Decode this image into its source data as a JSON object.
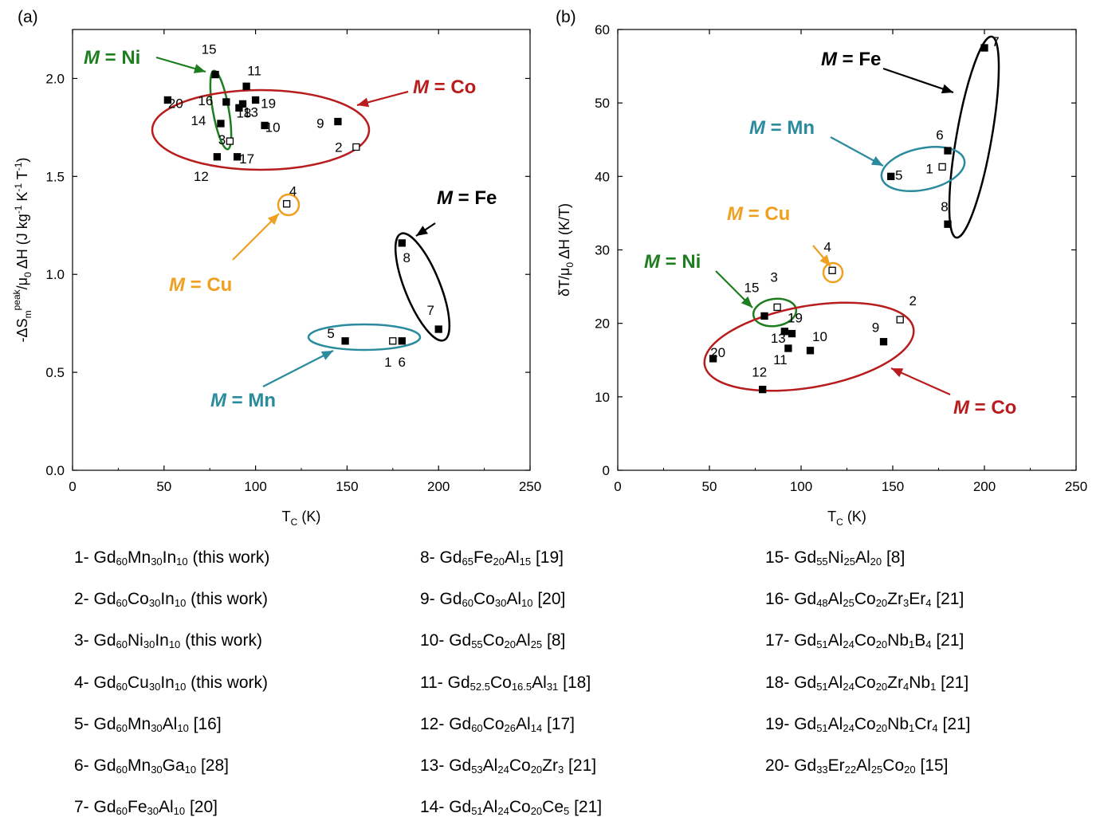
{
  "chart_data": [
    {
      "type": "scatter",
      "panel_label": "(a)",
      "xlabel": "T_C (K)",
      "ylabel": "-ΔS_m^peak/μ0 ΔH (J kg^-1 K^-1 T^-1)",
      "xlim": [
        0,
        250
      ],
      "ylim": [
        0,
        2.25
      ],
      "xticks": [
        0,
        50,
        100,
        150,
        200,
        250
      ],
      "yticks": [
        0.0,
        0.5,
        1.0,
        1.5,
        2.0
      ],
      "points": [
        {
          "id": "1",
          "x": 175,
          "y": 0.66,
          "open": true
        },
        {
          "id": "2",
          "x": 155,
          "y": 1.65,
          "open": true
        },
        {
          "id": "3",
          "x": 86,
          "y": 1.68,
          "open": true
        },
        {
          "id": "4",
          "x": 117,
          "y": 1.36,
          "open": true
        },
        {
          "id": "5",
          "x": 149,
          "y": 0.66,
          "open": false
        },
        {
          "id": "6",
          "x": 180,
          "y": 0.66,
          "open": false
        },
        {
          "id": "7",
          "x": 200,
          "y": 0.72,
          "open": false
        },
        {
          "id": "8",
          "x": 180,
          "y": 1.16,
          "open": false
        },
        {
          "id": "9",
          "x": 145,
          "y": 1.78,
          "open": false
        },
        {
          "id": "10",
          "x": 105,
          "y": 1.76,
          "open": false
        },
        {
          "id": "11",
          "x": 95,
          "y": 1.96,
          "open": false
        },
        {
          "id": "12",
          "x": 79,
          "y": 1.6,
          "open": false
        },
        {
          "id": "13",
          "x": 93,
          "y": 1.87,
          "open": false
        },
        {
          "id": "14",
          "x": 81,
          "y": 1.77,
          "open": false
        },
        {
          "id": "15",
          "x": 78,
          "y": 2.02,
          "open": false
        },
        {
          "id": "16",
          "x": 84,
          "y": 1.88,
          "open": false
        },
        {
          "id": "17",
          "x": 90,
          "y": 1.6,
          "open": false
        },
        {
          "id": "18",
          "x": 91,
          "y": 1.85,
          "open": false
        },
        {
          "id": "19",
          "x": 100,
          "y": 1.89,
          "open": false
        },
        {
          "id": "20",
          "x": 52,
          "y": 1.89,
          "open": false
        }
      ],
      "groups": [
        {
          "label": "M = Ni",
          "color": "#1e7d1e"
        },
        {
          "label": "M = Co",
          "color": "#b81c1c"
        },
        {
          "label": "M = Cu",
          "color": "#f0a020"
        },
        {
          "label": "M = Fe",
          "color": "#000000"
        },
        {
          "label": "M = Mn",
          "color": "#2a8a9e"
        }
      ]
    },
    {
      "type": "scatter",
      "panel_label": "(b)",
      "xlabel": "T_C (K)",
      "ylabel": "δT/μ0 ΔH (K/T)",
      "xlim": [
        0,
        250
      ],
      "ylim": [
        0,
        60
      ],
      "xticks": [
        0,
        50,
        100,
        150,
        200,
        250
      ],
      "yticks": [
        0,
        10,
        20,
        30,
        40,
        50,
        60
      ],
      "points": [
        {
          "id": "1",
          "x": 177,
          "y": 41.3,
          "open": true
        },
        {
          "id": "2",
          "x": 154,
          "y": 20.5,
          "open": true
        },
        {
          "id": "3",
          "x": 87,
          "y": 22.2,
          "open": true
        },
        {
          "id": "4",
          "x": 117,
          "y": 27.2,
          "open": true
        },
        {
          "id": "5",
          "x": 149,
          "y": 40.0,
          "open": false
        },
        {
          "id": "6",
          "x": 180,
          "y": 43.5,
          "open": false
        },
        {
          "id": "7",
          "x": 200,
          "y": 57.5,
          "open": false
        },
        {
          "id": "8",
          "x": 180,
          "y": 33.5,
          "open": false
        },
        {
          "id": "9",
          "x": 145,
          "y": 17.5,
          "open": false
        },
        {
          "id": "10",
          "x": 105,
          "y": 16.3,
          "open": false
        },
        {
          "id": "11",
          "x": 93,
          "y": 16.6,
          "open": false
        },
        {
          "id": "12",
          "x": 79,
          "y": 11.0,
          "open": false
        },
        {
          "id": "13",
          "x": 91,
          "y": 18.9,
          "open": false
        },
        {
          "id": "15",
          "x": 80,
          "y": 21.0,
          "open": false
        },
        {
          "id": "19",
          "x": 95,
          "y": 18.6,
          "open": false
        },
        {
          "id": "20",
          "x": 52,
          "y": 15.2,
          "open": false
        }
      ],
      "groups": [
        {
          "label": "M = Fe",
          "color": "#000000"
        },
        {
          "label": "M = Mn",
          "color": "#2a8a9e"
        },
        {
          "label": "M = Cu",
          "color": "#f0a020"
        },
        {
          "label": "M = Ni",
          "color": "#1e7d1e"
        },
        {
          "label": "M = Co",
          "color": "#b81c1c"
        }
      ]
    }
  ],
  "legend": [
    {
      "n": "1-",
      "parts": [
        [
          "Gd",
          ""
        ],
        [
          "60",
          "s"
        ],
        [
          "Mn",
          ""
        ],
        [
          "30",
          "s"
        ],
        [
          "In",
          ""
        ],
        [
          "10",
          "s"
        ],
        [
          " (this work)",
          ""
        ]
      ]
    },
    {
      "n": "2-",
      "parts": [
        [
          "Gd",
          ""
        ],
        [
          "60",
          "s"
        ],
        [
          "Co",
          ""
        ],
        [
          "30",
          "s"
        ],
        [
          "In",
          ""
        ],
        [
          "10",
          "s"
        ],
        [
          " (this work)",
          ""
        ]
      ]
    },
    {
      "n": "3-",
      "parts": [
        [
          "Gd",
          ""
        ],
        [
          "60",
          "s"
        ],
        [
          "Ni",
          ""
        ],
        [
          "30",
          "s"
        ],
        [
          "In",
          ""
        ],
        [
          "10",
          "s"
        ],
        [
          " (this work)",
          ""
        ]
      ]
    },
    {
      "n": "4-",
      "parts": [
        [
          "Gd",
          ""
        ],
        [
          "60",
          "s"
        ],
        [
          "Cu",
          ""
        ],
        [
          "30",
          "s"
        ],
        [
          "In",
          ""
        ],
        [
          "10",
          "s"
        ],
        [
          " (this work)",
          ""
        ]
      ]
    },
    {
      "n": "5-",
      "parts": [
        [
          "Gd",
          ""
        ],
        [
          "60",
          "s"
        ],
        [
          "Mn",
          ""
        ],
        [
          "30",
          "s"
        ],
        [
          "Al",
          ""
        ],
        [
          "10",
          "s"
        ],
        [
          " [16]",
          ""
        ]
      ]
    },
    {
      "n": "6-",
      "parts": [
        [
          "Gd",
          ""
        ],
        [
          "60",
          "s"
        ],
        [
          "Mn",
          ""
        ],
        [
          "30",
          "s"
        ],
        [
          "Ga",
          ""
        ],
        [
          "10",
          "s"
        ],
        [
          " [28]",
          ""
        ]
      ]
    },
    {
      "n": "7-",
      "parts": [
        [
          "Gd",
          ""
        ],
        [
          "60",
          "s"
        ],
        [
          "Fe",
          ""
        ],
        [
          "30",
          "s"
        ],
        [
          "Al",
          ""
        ],
        [
          "10",
          "s"
        ],
        [
          " [20]",
          ""
        ]
      ]
    },
    {
      "n": "8-",
      "parts": [
        [
          "Gd",
          ""
        ],
        [
          "65",
          "s"
        ],
        [
          "Fe",
          ""
        ],
        [
          "20",
          "s"
        ],
        [
          "Al",
          ""
        ],
        [
          "15",
          "s"
        ],
        [
          " [19]",
          ""
        ]
      ]
    },
    {
      "n": "9-",
      "parts": [
        [
          "Gd",
          ""
        ],
        [
          "60",
          "s"
        ],
        [
          "Co",
          ""
        ],
        [
          "30",
          "s"
        ],
        [
          "Al",
          ""
        ],
        [
          "10",
          "s"
        ],
        [
          " [20]",
          ""
        ]
      ]
    },
    {
      "n": "10-",
      "parts": [
        [
          "Gd",
          ""
        ],
        [
          "55",
          "s"
        ],
        [
          "Co",
          ""
        ],
        [
          "20",
          "s"
        ],
        [
          "Al",
          ""
        ],
        [
          "25",
          "s"
        ],
        [
          " [8]",
          ""
        ]
      ]
    },
    {
      "n": "11-",
      "parts": [
        [
          "Gd",
          ""
        ],
        [
          "52.5",
          "s"
        ],
        [
          "Co",
          ""
        ],
        [
          "16.5",
          "s"
        ],
        [
          "Al",
          ""
        ],
        [
          "31",
          "s"
        ],
        [
          " [18]",
          ""
        ]
      ]
    },
    {
      "n": "12-",
      "parts": [
        [
          "Gd",
          ""
        ],
        [
          "60",
          "s"
        ],
        [
          "Co",
          ""
        ],
        [
          "26",
          "s"
        ],
        [
          "Al",
          ""
        ],
        [
          "14",
          "s"
        ],
        [
          " [17]",
          ""
        ]
      ]
    },
    {
      "n": "13-",
      "parts": [
        [
          "Gd",
          ""
        ],
        [
          "53",
          "s"
        ],
        [
          "Al",
          ""
        ],
        [
          "24",
          "s"
        ],
        [
          "Co",
          ""
        ],
        [
          "20",
          "s"
        ],
        [
          "Zr",
          ""
        ],
        [
          "3",
          "s"
        ],
        [
          " [21]",
          ""
        ]
      ]
    },
    {
      "n": "14-",
      "parts": [
        [
          "Gd",
          ""
        ],
        [
          "51",
          "s"
        ],
        [
          "Al",
          ""
        ],
        [
          "24",
          "s"
        ],
        [
          "Co",
          ""
        ],
        [
          "20",
          "s"
        ],
        [
          "Ce",
          ""
        ],
        [
          "5",
          "s"
        ],
        [
          " [21]",
          ""
        ]
      ]
    },
    {
      "n": "15-",
      "parts": [
        [
          "Gd",
          ""
        ],
        [
          "55",
          "s"
        ],
        [
          "Ni",
          ""
        ],
        [
          "25",
          "s"
        ],
        [
          "Al",
          ""
        ],
        [
          "20",
          "s"
        ],
        [
          " [8]",
          ""
        ]
      ]
    },
    {
      "n": "16-",
      "parts": [
        [
          "Gd",
          ""
        ],
        [
          "48",
          "s"
        ],
        [
          "Al",
          ""
        ],
        [
          "25",
          "s"
        ],
        [
          "Co",
          ""
        ],
        [
          "20",
          "s"
        ],
        [
          "Zr",
          ""
        ],
        [
          "3",
          "s"
        ],
        [
          "Er",
          ""
        ],
        [
          "4",
          "s"
        ],
        [
          " [21]",
          ""
        ]
      ]
    },
    {
      "n": "17-",
      "parts": [
        [
          "Gd",
          ""
        ],
        [
          "51",
          "s"
        ],
        [
          "Al",
          ""
        ],
        [
          "24",
          "s"
        ],
        [
          "Co",
          ""
        ],
        [
          "20",
          "s"
        ],
        [
          "Nb",
          ""
        ],
        [
          "1",
          "s"
        ],
        [
          "B",
          ""
        ],
        [
          "4",
          "s"
        ],
        [
          " [21]",
          ""
        ]
      ]
    },
    {
      "n": "18-",
      "parts": [
        [
          "Gd",
          ""
        ],
        [
          "51",
          "s"
        ],
        [
          "Al",
          ""
        ],
        [
          "24",
          "s"
        ],
        [
          "Co",
          ""
        ],
        [
          "20",
          "s"
        ],
        [
          "Zr",
          ""
        ],
        [
          "4",
          "s"
        ],
        [
          "Nb",
          ""
        ],
        [
          "1",
          "s"
        ],
        [
          " [21]",
          ""
        ]
      ]
    },
    {
      "n": "19-",
      "parts": [
        [
          "Gd",
          ""
        ],
        [
          "51",
          "s"
        ],
        [
          "Al",
          ""
        ],
        [
          "24",
          "s"
        ],
        [
          "Co",
          ""
        ],
        [
          "20",
          "s"
        ],
        [
          "Nb",
          ""
        ],
        [
          "1",
          "s"
        ],
        [
          "Cr",
          ""
        ],
        [
          "4",
          "s"
        ],
        [
          " [21]",
          ""
        ]
      ]
    },
    {
      "n": "20-",
      "parts": [
        [
          "Gd",
          ""
        ],
        [
          "33",
          "s"
        ],
        [
          "Er",
          ""
        ],
        [
          "22",
          "s"
        ],
        [
          "Al",
          ""
        ],
        [
          "25",
          "s"
        ],
        [
          "Co",
          ""
        ],
        [
          "20",
          "s"
        ],
        [
          " [15]",
          ""
        ]
      ]
    }
  ]
}
